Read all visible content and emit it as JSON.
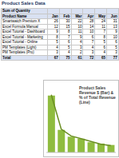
{
  "header": {
    "title": "Product Sales Data"
  },
  "table": {
    "corner": "Sum of Quantity",
    "name_header": "Product Name",
    "columns": [
      "Jan",
      "Feb",
      "Mar",
      "Apr",
      "May",
      "Jun"
    ],
    "rows": [
      {
        "name": "Smartwatch Premium X",
        "values": [
          26,
          30,
          22,
          28,
          24,
          31
        ]
      },
      {
        "name": "Excel Formula Manual",
        "values": [
          12,
          15,
          10,
          14,
          11,
          13
        ]
      },
      {
        "name": "Excel Tutorial - Dashboard",
        "values": [
          9,
          8,
          11,
          10,
          7,
          9
        ]
      },
      {
        "name": "Excel Tutorial - Marketing",
        "values": [
          8,
          7,
          9,
          6,
          8,
          10
        ]
      },
      {
        "name": "Excel Tutorial - Online",
        "values": [
          5,
          6,
          4,
          7,
          5,
          6
        ]
      },
      {
        "name": "PM Templates (Light)",
        "values": [
          4,
          5,
          3,
          4,
          6,
          5
        ]
      },
      {
        "name": "PM Templates (Pro)",
        "values": [
          3,
          4,
          2,
          3,
          4,
          3
        ]
      }
    ],
    "total": {
      "name": "Total",
      "values": [
        67,
        75,
        61,
        72,
        65,
        77
      ]
    }
  },
  "chart_data": {
    "type": "bar",
    "title": "Product Sales Revenue $ (Bar) & % of Total Revenue (Line)",
    "categories": [
      null,
      null,
      null,
      null,
      null,
      null,
      null
    ],
    "tick_labels": false,
    "grid": false,
    "ylim": [
      0,
      3500
    ],
    "y2lim": [
      0,
      50
    ],
    "series": [
      {
        "name": "Revenue $",
        "type": "bar",
        "color": "#8fbc3f",
        "values": [
          2900,
          1150,
          800,
          700,
          520,
          450,
          380
        ]
      },
      {
        "name": "% of Total Revenue",
        "type": "line",
        "axis": "y2",
        "color": "#6b8e23",
        "marker": "none",
        "values": [
          42,
          17,
          12,
          10,
          8,
          6,
          5
        ]
      }
    ]
  }
}
